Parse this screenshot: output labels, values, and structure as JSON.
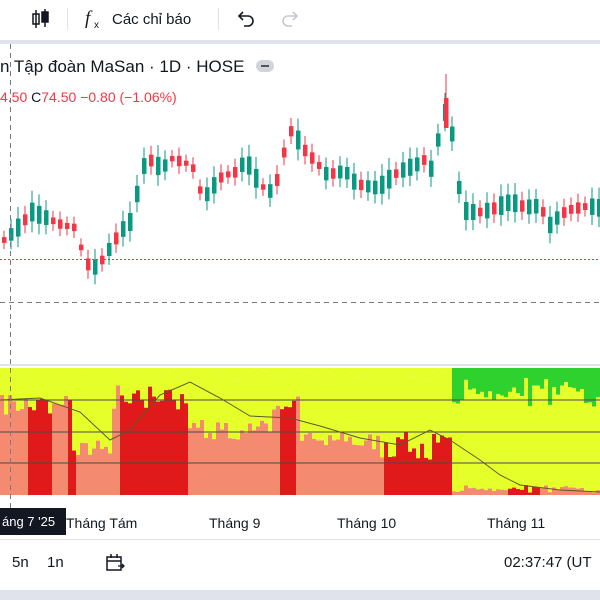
{
  "toolbar": {
    "indicators_label": "Các chỉ báo",
    "icons": [
      "candles-icon",
      "fx-icon",
      "undo-icon",
      "redo-icon"
    ]
  },
  "legend": {
    "title": "n Tập đoàn MaSan · 1D · HOSE",
    "open_tail": "4.50",
    "close_key": "C",
    "close_value": "74.50",
    "change": "−0.80 (−1.06%)"
  },
  "time_axis": {
    "labels": [
      "Tháng Tám",
      "Tháng 9",
      "Tháng 10",
      "Tháng 11"
    ],
    "crosshair_date": "áng 7 '25"
  },
  "bottombar": {
    "range_5d": "5n",
    "range_1d": "1n",
    "clock": "02:37:47 (UT"
  },
  "colors": {
    "up": "#089981",
    "down": "#f23645",
    "indicator_yellow": "#e5ff2b",
    "indicator_green": "#2ed12e",
    "indicator_red": "#e01a1a",
    "indicator_salmon": "#f48a70"
  }
}
